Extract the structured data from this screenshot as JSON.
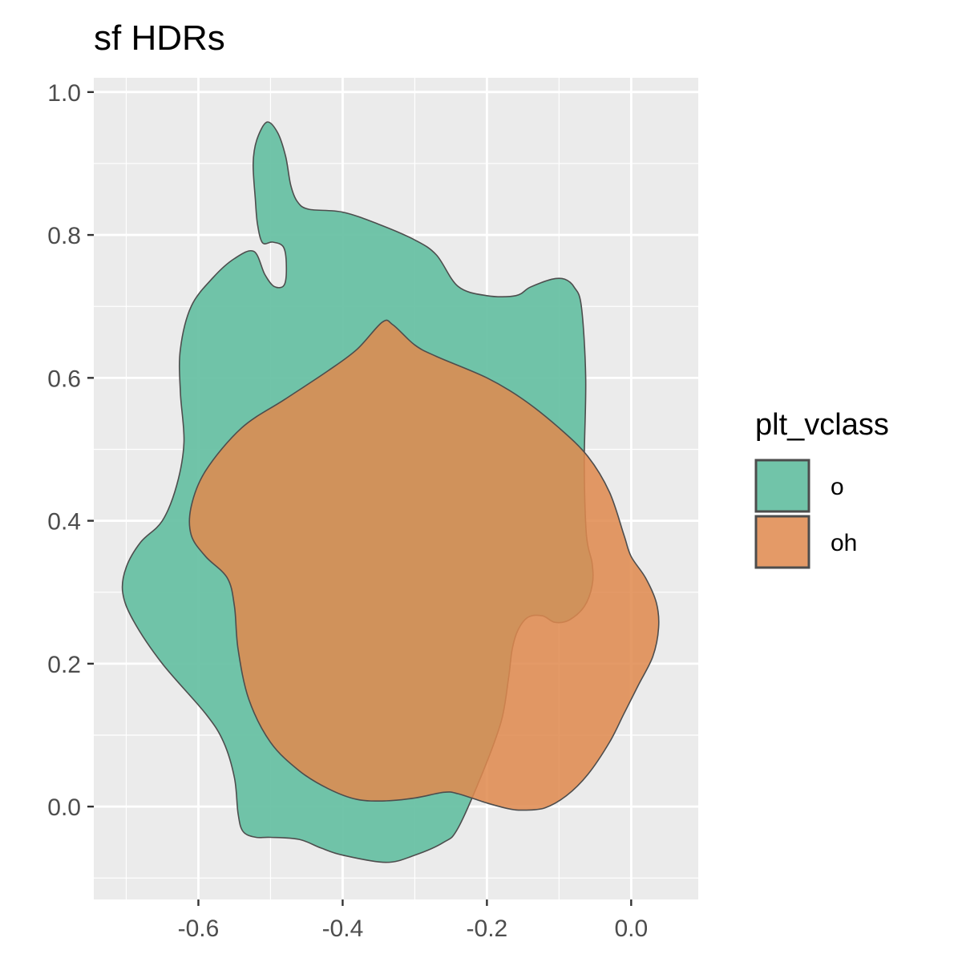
{
  "chart_data": {
    "type": "area",
    "title": "sf HDRs",
    "xlabel": "",
    "ylabel": "",
    "xlim": [
      -0.745,
      0.093
    ],
    "ylim": [
      -0.13,
      1.02
    ],
    "x_ticks": [
      -0.6,
      -0.4,
      -0.2,
      0.0
    ],
    "x_tick_labels": [
      "-0.6",
      "-0.4",
      "-0.2",
      "0.0"
    ],
    "y_ticks": [
      0.0,
      0.2,
      0.4,
      0.6,
      0.8,
      1.0
    ],
    "y_tick_labels": [
      "0.0",
      "0.2",
      "0.4",
      "0.6",
      "0.8",
      "1.0"
    ],
    "grid": true,
    "legend": {
      "title": "plt_vclass",
      "placement": "right"
    },
    "series": [
      {
        "name": "o",
        "color": "#66bfa2",
        "outline": "#4d4d4d",
        "opacity": 0.93,
        "points": [
          [
            -0.519,
            0.933
          ],
          [
            -0.505,
            0.958
          ],
          [
            -0.49,
            0.943
          ],
          [
            -0.479,
            0.91
          ],
          [
            -0.472,
            0.87
          ],
          [
            -0.463,
            0.847
          ],
          [
            -0.447,
            0.836
          ],
          [
            -0.4,
            0.832
          ],
          [
            -0.35,
            0.815
          ],
          [
            -0.3,
            0.793
          ],
          [
            -0.27,
            0.772
          ],
          [
            -0.24,
            0.728
          ],
          [
            -0.2,
            0.715
          ],
          [
            -0.16,
            0.715
          ],
          [
            -0.14,
            0.727
          ],
          [
            -0.11,
            0.738
          ],
          [
            -0.092,
            0.738
          ],
          [
            -0.079,
            0.727
          ],
          [
            -0.069,
            0.7
          ],
          [
            -0.063,
            0.6
          ],
          [
            -0.065,
            0.48
          ],
          [
            -0.062,
            0.38
          ],
          [
            -0.054,
            0.34
          ],
          [
            -0.054,
            0.31
          ],
          [
            -0.065,
            0.28
          ],
          [
            -0.086,
            0.261
          ],
          [
            -0.106,
            0.258
          ],
          [
            -0.123,
            0.267
          ],
          [
            -0.143,
            0.265
          ],
          [
            -0.157,
            0.247
          ],
          [
            -0.165,
            0.22
          ],
          [
            -0.17,
            0.18
          ],
          [
            -0.18,
            0.12
          ],
          [
            -0.205,
            0.05
          ],
          [
            -0.24,
            -0.03
          ],
          [
            -0.26,
            -0.05
          ],
          [
            -0.3,
            -0.068
          ],
          [
            -0.34,
            -0.078
          ],
          [
            -0.4,
            -0.068
          ],
          [
            -0.43,
            -0.058
          ],
          [
            -0.46,
            -0.046
          ],
          [
            -0.5,
            -0.043
          ],
          [
            -0.52,
            -0.043
          ],
          [
            -0.538,
            -0.035
          ],
          [
            -0.545,
            -0.01
          ],
          [
            -0.55,
            0.04
          ],
          [
            -0.565,
            0.09
          ],
          [
            -0.59,
            0.13
          ],
          [
            -0.65,
            0.2
          ],
          [
            -0.69,
            0.26
          ],
          [
            -0.705,
            0.3
          ],
          [
            -0.7,
            0.335
          ],
          [
            -0.68,
            0.37
          ],
          [
            -0.65,
            0.4
          ],
          [
            -0.63,
            0.45
          ],
          [
            -0.62,
            0.51
          ],
          [
            -0.625,
            0.58
          ],
          [
            -0.625,
            0.64
          ],
          [
            -0.61,
            0.7
          ],
          [
            -0.58,
            0.74
          ],
          [
            -0.55,
            0.767
          ],
          [
            -0.523,
            0.777
          ],
          [
            -0.508,
            0.745
          ],
          [
            -0.495,
            0.728
          ],
          [
            -0.481,
            0.73
          ],
          [
            -0.478,
            0.757
          ],
          [
            -0.482,
            0.783
          ],
          [
            -0.497,
            0.79
          ],
          [
            -0.511,
            0.789
          ],
          [
            -0.518,
            0.815
          ],
          [
            -0.521,
            0.85
          ],
          [
            -0.524,
            0.9
          ],
          [
            -0.519,
            0.933
          ]
        ]
      },
      {
        "name": "oh",
        "color": "#e0894e",
        "outline": "#4d4d4d",
        "opacity": 0.86,
        "points": [
          [
            -0.345,
            0.678
          ],
          [
            -0.33,
            0.674
          ],
          [
            -0.3,
            0.646
          ],
          [
            -0.27,
            0.63
          ],
          [
            -0.2,
            0.6
          ],
          [
            -0.15,
            0.57
          ],
          [
            -0.1,
            0.53
          ],
          [
            -0.06,
            0.49
          ],
          [
            -0.03,
            0.44
          ],
          [
            -0.01,
            0.38
          ],
          [
            0.0,
            0.35
          ],
          [
            0.02,
            0.32
          ],
          [
            0.035,
            0.285
          ],
          [
            0.038,
            0.25
          ],
          [
            0.03,
            0.21
          ],
          [
            0.01,
            0.17
          ],
          [
            -0.01,
            0.13
          ],
          [
            -0.03,
            0.09
          ],
          [
            -0.06,
            0.045
          ],
          [
            -0.09,
            0.015
          ],
          [
            -0.12,
            -0.002
          ],
          [
            -0.15,
            -0.005
          ],
          [
            -0.17,
            -0.003
          ],
          [
            -0.2,
            0.005
          ],
          [
            -0.24,
            0.018
          ],
          [
            -0.26,
            0.02
          ],
          [
            -0.3,
            0.012
          ],
          [
            -0.34,
            0.008
          ],
          [
            -0.38,
            0.01
          ],
          [
            -0.42,
            0.025
          ],
          [
            -0.46,
            0.05
          ],
          [
            -0.5,
            0.09
          ],
          [
            -0.53,
            0.15
          ],
          [
            -0.545,
            0.22
          ],
          [
            -0.55,
            0.28
          ],
          [
            -0.56,
            0.32
          ],
          [
            -0.59,
            0.35
          ],
          [
            -0.61,
            0.38
          ],
          [
            -0.61,
            0.42
          ],
          [
            -0.59,
            0.47
          ],
          [
            -0.54,
            0.53
          ],
          [
            -0.48,
            0.57
          ],
          [
            -0.42,
            0.61
          ],
          [
            -0.38,
            0.64
          ],
          [
            -0.345,
            0.678
          ]
        ]
      }
    ]
  }
}
